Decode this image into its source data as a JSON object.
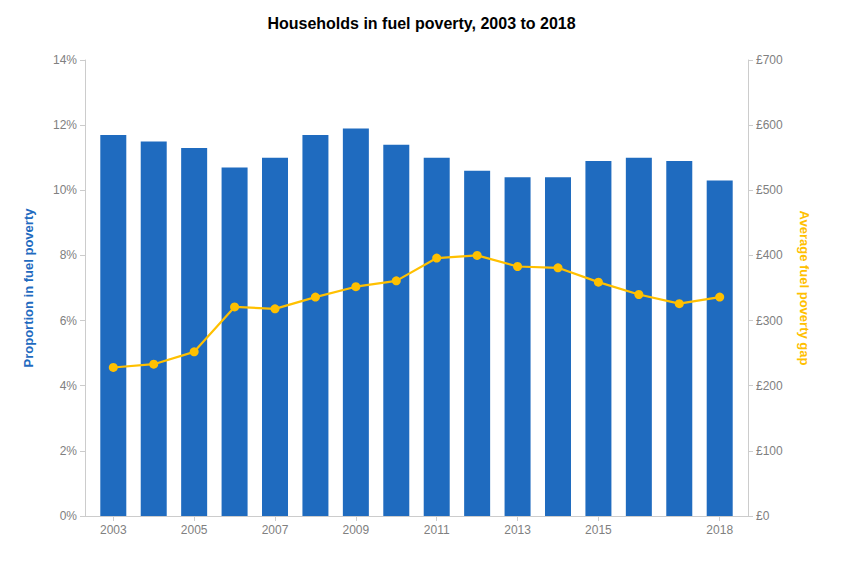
{
  "chart_data": {
    "type": "bar",
    "title": "Households in fuel poverty, 2003 to 2018",
    "x": [
      2003,
      2004,
      2005,
      2006,
      2007,
      2008,
      2009,
      2010,
      2011,
      2012,
      2013,
      2014,
      2015,
      2016,
      2017,
      2018
    ],
    "xlim": [
      2002.3,
      2018.7
    ],
    "xticks": [
      2003,
      2005,
      2007,
      2009,
      2011,
      2013,
      2015,
      2018
    ],
    "ylabel": "Proportion in fuel poverty",
    "y2label": "Average fuel poverty gap",
    "ylim": [
      0,
      0.14
    ],
    "yticks": [
      {
        "value": 0,
        "label": "0%"
      },
      {
        "value": 0.02,
        "label": "2%"
      },
      {
        "value": 0.04,
        "label": "4%"
      },
      {
        "value": 0.06,
        "label": "6%"
      },
      {
        "value": 0.08,
        "label": "8%"
      },
      {
        "value": 0.1,
        "label": "10%"
      },
      {
        "value": 0.12,
        "label": "12%"
      },
      {
        "value": 0.14,
        "label": "14%"
      }
    ],
    "y2lim": [
      0,
      700
    ],
    "y2ticks": [
      {
        "value": 0,
        "label": "£0"
      },
      {
        "value": 100,
        "label": "£100"
      },
      {
        "value": 200,
        "label": "£200"
      },
      {
        "value": 300,
        "label": "£300"
      },
      {
        "value": 400,
        "label": "£400"
      },
      {
        "value": 500,
        "label": "£500"
      },
      {
        "value": 600,
        "label": "£600"
      },
      {
        "value": 700,
        "label": "£700"
      }
    ],
    "grid": false,
    "series": [
      {
        "type": "bar",
        "color": "#1f6bbf",
        "values": [
          0.117,
          0.115,
          0.113,
          0.107,
          0.11,
          0.117,
          0.119,
          0.114,
          0.11,
          0.106,
          0.104,
          0.104,
          0.109,
          0.11,
          0.109,
          0.103
        ]
      },
      {
        "type": "line",
        "axis": "y2",
        "color": "#FFC000",
        "marker": "circle",
        "values": [
          228,
          233,
          252,
          321,
          318,
          336,
          352,
          361,
          396,
          400,
          383,
          381,
          359,
          340,
          326,
          336
        ]
      }
    ]
  }
}
